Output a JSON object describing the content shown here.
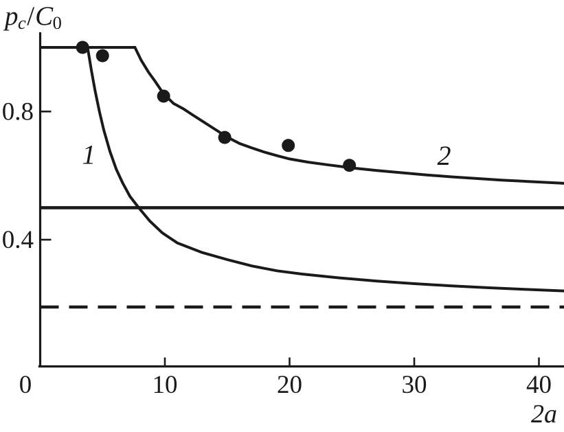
{
  "colors": {
    "ink": "#1a1a1a",
    "background": "#ffffff"
  },
  "chart_data": {
    "type": "line",
    "title": "",
    "xlabel": "2a",
    "ylabel": "pc/C0",
    "xlabel_rich": {
      "num": "2",
      "var": "a"
    },
    "ylabel_rich": {
      "p": "p",
      "p_sub": "c",
      "slash": "/",
      "C": "C",
      "C_sub": "0"
    },
    "xlim": [
      0,
      42
    ],
    "ylim": [
      0,
      1.05
    ],
    "grid": false,
    "legend_position": "none",
    "x_origin_label": "0",
    "x_ticks": [
      {
        "v": 10,
        "label": "10"
      },
      {
        "v": 20,
        "label": "20"
      },
      {
        "v": 30,
        "label": "30"
      },
      {
        "v": 40,
        "label": "40"
      }
    ],
    "y_ticks": [
      {
        "v": 0.4,
        "label": "0.4"
      },
      {
        "v": 0.8,
        "label": "0.8"
      }
    ],
    "series": [
      {
        "name": "curve-1",
        "label": "1",
        "style": "solid",
        "width": 4,
        "points": [
          [
            0,
            1
          ],
          [
            3.8,
            1
          ],
          [
            4.1,
            0.93
          ],
          [
            4.4,
            0.865
          ],
          [
            4.75,
            0.8
          ],
          [
            5.1,
            0.742
          ],
          [
            5.6,
            0.675
          ],
          [
            6.1,
            0.62
          ],
          [
            6.6,
            0.578
          ],
          [
            7.2,
            0.535
          ],
          [
            7.9,
            0.5
          ],
          [
            8.8,
            0.458
          ],
          [
            9.8,
            0.421
          ],
          [
            11,
            0.39
          ],
          [
            13,
            0.36
          ],
          [
            15,
            0.338
          ],
          [
            17,
            0.318
          ],
          [
            19,
            0.303
          ],
          [
            21,
            0.293
          ],
          [
            24,
            0.281
          ],
          [
            27,
            0.271
          ],
          [
            30,
            0.263
          ],
          [
            33,
            0.256
          ],
          [
            36,
            0.25
          ],
          [
            39,
            0.245
          ],
          [
            42.1,
            0.24
          ]
        ]
      },
      {
        "name": "curve-2",
        "label": "2",
        "style": "solid",
        "width": 4,
        "points": [
          [
            0,
            1
          ],
          [
            7.6,
            1
          ],
          [
            8.1,
            0.96
          ],
          [
            8.7,
            0.922
          ],
          [
            9.2,
            0.895
          ],
          [
            9.9,
            0.855
          ],
          [
            10.7,
            0.825
          ],
          [
            11.5,
            0.808
          ],
          [
            12.2,
            0.79
          ],
          [
            13,
            0.77
          ],
          [
            14,
            0.745
          ],
          [
            15,
            0.72
          ],
          [
            16,
            0.7
          ],
          [
            17,
            0.686
          ],
          [
            18,
            0.673
          ],
          [
            19,
            0.662
          ],
          [
            20,
            0.652
          ],
          [
            21.5,
            0.642
          ],
          [
            23,
            0.634
          ],
          [
            25,
            0.624
          ],
          [
            27,
            0.616
          ],
          [
            29,
            0.609
          ],
          [
            31,
            0.602
          ],
          [
            33,
            0.596
          ],
          [
            35,
            0.591
          ],
          [
            37,
            0.586
          ],
          [
            39,
            0.582
          ],
          [
            42.1,
            0.576
          ]
        ]
      },
      {
        "name": "reference-solid-line",
        "label": "",
        "style": "solid",
        "width": 4.6,
        "points": [
          [
            0,
            0.5
          ],
          [
            42.1,
            0.5
          ]
        ]
      },
      {
        "name": "reference-dashed-line",
        "label": "",
        "style": "dashed",
        "width": 4.6,
        "points": [
          [
            0,
            0.19
          ],
          [
            42.1,
            0.19
          ]
        ]
      }
    ],
    "scatter": {
      "name": "experimental-points",
      "marker": "filled-circle",
      "radius": 9.5,
      "points": [
        [
          3.4,
          1.0
        ],
        [
          5.0,
          0.974
        ],
        [
          9.9,
          0.848
        ],
        [
          14.8,
          0.719
        ],
        [
          19.9,
          0.694
        ],
        [
          24.8,
          0.632
        ]
      ]
    },
    "annotations": [
      {
        "id": "curve-1-label",
        "text": "1",
        "x": 3.9,
        "y": 0.666
      },
      {
        "id": "curve-2-label",
        "text": "2",
        "x": 32.4,
        "y": 0.663
      }
    ]
  }
}
